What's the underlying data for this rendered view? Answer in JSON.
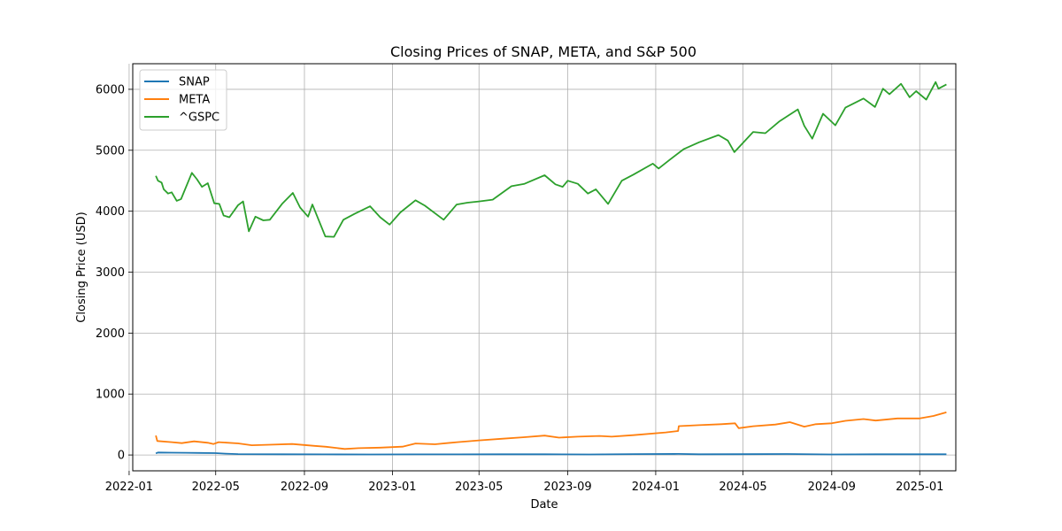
{
  "chart_data": {
    "type": "line",
    "title": "Closing Prices of SNAP, META, and S&P 500",
    "xlabel": "Date",
    "ylabel": "Closing Price (USD)",
    "xlim": [
      "2022-01-06",
      "2025-02-20"
    ],
    "ylim": [
      -260,
      6420
    ],
    "x_ticks": [
      "2022-01",
      "2022-05",
      "2022-09",
      "2023-01",
      "2023-05",
      "2023-09",
      "2024-01",
      "2024-05",
      "2024-09",
      "2025-01"
    ],
    "y_ticks": [
      0,
      1000,
      2000,
      3000,
      4000,
      5000,
      6000
    ],
    "grid": true,
    "legend_position": "upper-left",
    "series": [
      {
        "name": "SNAP",
        "color": "#1f77b4",
        "points": [
          [
            "2022-02-07",
            26
          ],
          [
            "2022-02-10",
            40
          ],
          [
            "2022-03-01",
            37
          ],
          [
            "2022-03-20",
            36
          ],
          [
            "2022-04-10",
            34
          ],
          [
            "2022-05-01",
            30
          ],
          [
            "2022-05-15",
            22
          ],
          [
            "2022-06-01",
            14
          ],
          [
            "2022-08-01",
            12
          ],
          [
            "2022-10-01",
            10
          ],
          [
            "2022-12-01",
            9
          ],
          [
            "2023-02-01",
            10
          ],
          [
            "2023-04-01",
            10
          ],
          [
            "2023-06-01",
            11
          ],
          [
            "2023-08-01",
            12
          ],
          [
            "2023-10-01",
            9
          ],
          [
            "2023-12-01",
            15
          ],
          [
            "2024-02-01",
            17
          ],
          [
            "2024-03-01",
            11
          ],
          [
            "2024-05-01",
            13
          ],
          [
            "2024-07-01",
            16
          ],
          [
            "2024-09-01",
            9
          ],
          [
            "2024-11-01",
            11
          ],
          [
            "2025-01-01",
            11
          ],
          [
            "2025-02-07",
            11
          ]
        ]
      },
      {
        "name": "META",
        "color": "#ff7f0e",
        "points": [
          [
            "2022-02-07",
            320
          ],
          [
            "2022-02-09",
            230
          ],
          [
            "2022-03-01",
            210
          ],
          [
            "2022-03-15",
            195
          ],
          [
            "2022-04-01",
            224
          ],
          [
            "2022-04-20",
            200
          ],
          [
            "2022-04-28",
            180
          ],
          [
            "2022-05-05",
            210
          ],
          [
            "2022-06-01",
            190
          ],
          [
            "2022-06-20",
            160
          ],
          [
            "2022-07-15",
            168
          ],
          [
            "2022-08-15",
            180
          ],
          [
            "2022-09-15",
            150
          ],
          [
            "2022-10-01",
            135
          ],
          [
            "2022-10-27",
            98
          ],
          [
            "2022-11-15",
            112
          ],
          [
            "2022-12-15",
            120
          ],
          [
            "2023-01-15",
            137
          ],
          [
            "2023-02-02",
            188
          ],
          [
            "2023-03-01",
            175
          ],
          [
            "2023-04-01",
            210
          ],
          [
            "2023-05-01",
            240
          ],
          [
            "2023-06-01",
            265
          ],
          [
            "2023-07-01",
            290
          ],
          [
            "2023-07-31",
            318
          ],
          [
            "2023-08-20",
            285
          ],
          [
            "2023-09-15",
            300
          ],
          [
            "2023-10-15",
            312
          ],
          [
            "2023-11-01",
            300
          ],
          [
            "2023-12-01",
            325
          ],
          [
            "2024-01-15",
            370
          ],
          [
            "2024-02-01",
            394
          ],
          [
            "2024-02-02",
            474
          ],
          [
            "2024-03-01",
            490
          ],
          [
            "2024-04-01",
            505
          ],
          [
            "2024-04-20",
            520
          ],
          [
            "2024-04-25",
            440
          ],
          [
            "2024-05-15",
            472
          ],
          [
            "2024-06-15",
            500
          ],
          [
            "2024-07-05",
            539
          ],
          [
            "2024-07-25",
            465
          ],
          [
            "2024-08-10",
            505
          ],
          [
            "2024-09-01",
            520
          ],
          [
            "2024-09-20",
            560
          ],
          [
            "2024-10-15",
            590
          ],
          [
            "2024-11-01",
            565
          ],
          [
            "2024-12-01",
            600
          ],
          [
            "2025-01-01",
            600
          ],
          [
            "2025-01-20",
            640
          ],
          [
            "2025-02-07",
            700
          ]
        ]
      },
      {
        "name": "^GSPC",
        "color": "#2ca02c",
        "points": [
          [
            "2022-02-07",
            4580
          ],
          [
            "2022-02-10",
            4500
          ],
          [
            "2022-02-15",
            4470
          ],
          [
            "2022-02-18",
            4360
          ],
          [
            "2022-02-24",
            4290
          ],
          [
            "2022-03-01",
            4310
          ],
          [
            "2022-03-08",
            4170
          ],
          [
            "2022-03-14",
            4200
          ],
          [
            "2022-03-29",
            4630
          ],
          [
            "2022-04-05",
            4525
          ],
          [
            "2022-04-12",
            4400
          ],
          [
            "2022-04-20",
            4460
          ],
          [
            "2022-04-29",
            4130
          ],
          [
            "2022-05-06",
            4120
          ],
          [
            "2022-05-12",
            3930
          ],
          [
            "2022-05-20",
            3900
          ],
          [
            "2022-06-01",
            4100
          ],
          [
            "2022-06-08",
            4160
          ],
          [
            "2022-06-16",
            3670
          ],
          [
            "2022-06-25",
            3910
          ],
          [
            "2022-07-06",
            3850
          ],
          [
            "2022-07-15",
            3860
          ],
          [
            "2022-08-01",
            4120
          ],
          [
            "2022-08-16",
            4300
          ],
          [
            "2022-08-26",
            4060
          ],
          [
            "2022-09-06",
            3910
          ],
          [
            "2022-09-12",
            4110
          ],
          [
            "2022-09-30",
            3585
          ],
          [
            "2022-10-12",
            3580
          ],
          [
            "2022-10-25",
            3860
          ],
          [
            "2022-11-10",
            3960
          ],
          [
            "2022-12-01",
            4080
          ],
          [
            "2022-12-15",
            3900
          ],
          [
            "2022-12-28",
            3780
          ],
          [
            "2023-01-12",
            3980
          ],
          [
            "2023-02-02",
            4180
          ],
          [
            "2023-02-15",
            4090
          ],
          [
            "2023-03-13",
            3860
          ],
          [
            "2023-03-31",
            4110
          ],
          [
            "2023-04-15",
            4140
          ],
          [
            "2023-05-01",
            4160
          ],
          [
            "2023-05-20",
            4190
          ],
          [
            "2023-06-15",
            4410
          ],
          [
            "2023-07-03",
            4450
          ],
          [
            "2023-07-31",
            4590
          ],
          [
            "2023-08-15",
            4440
          ],
          [
            "2023-08-25",
            4400
          ],
          [
            "2023-09-01",
            4500
          ],
          [
            "2023-09-15",
            4450
          ],
          [
            "2023-09-29",
            4290
          ],
          [
            "2023-10-10",
            4360
          ],
          [
            "2023-10-27",
            4120
          ],
          [
            "2023-11-15",
            4500
          ],
          [
            "2023-12-01",
            4600
          ],
          [
            "2023-12-28",
            4780
          ],
          [
            "2024-01-05",
            4700
          ],
          [
            "2024-01-20",
            4840
          ],
          [
            "2024-02-09",
            5020
          ],
          [
            "2024-03-01",
            5130
          ],
          [
            "2024-03-28",
            5250
          ],
          [
            "2024-04-10",
            5160
          ],
          [
            "2024-04-19",
            4970
          ],
          [
            "2024-05-15",
            5300
          ],
          [
            "2024-06-01",
            5280
          ],
          [
            "2024-06-20",
            5470
          ],
          [
            "2024-07-16",
            5670
          ],
          [
            "2024-07-25",
            5400
          ],
          [
            "2024-08-05",
            5190
          ],
          [
            "2024-08-20",
            5600
          ],
          [
            "2024-09-06",
            5410
          ],
          [
            "2024-09-20",
            5700
          ],
          [
            "2024-10-15",
            5850
          ],
          [
            "2024-10-31",
            5710
          ],
          [
            "2024-11-11",
            6010
          ],
          [
            "2024-11-20",
            5920
          ],
          [
            "2024-12-06",
            6090
          ],
          [
            "2024-12-18",
            5870
          ],
          [
            "2024-12-27",
            5970
          ],
          [
            "2025-01-10",
            5830
          ],
          [
            "2025-01-23",
            6120
          ],
          [
            "2025-01-27",
            6010
          ],
          [
            "2025-02-07",
            6080
          ]
        ]
      }
    ]
  }
}
